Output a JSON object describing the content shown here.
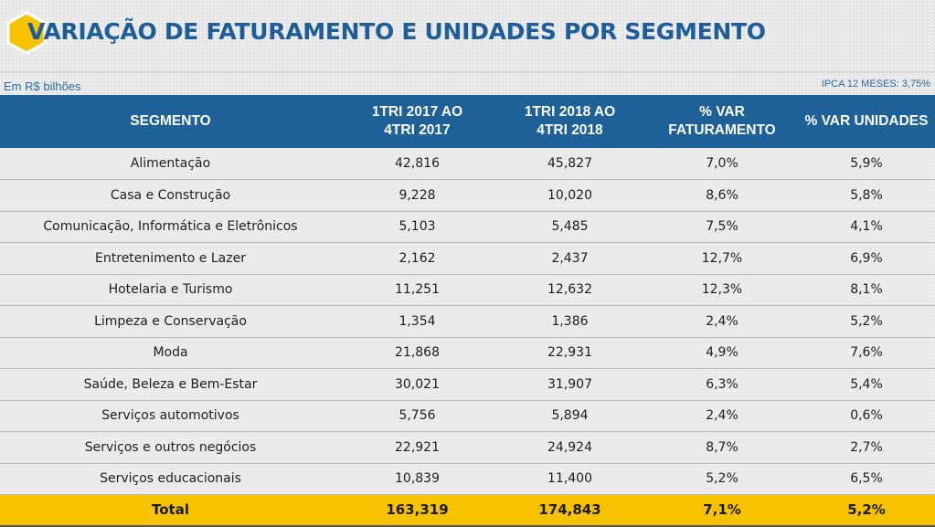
{
  "title": "VARIAÇÃO DE FATURAMENTO E UNIDADES POR SEGMENTO",
  "unit_note": "Em R$ bilhões",
  "ipca_note": "IPCA 12 MESES: 3,75%",
  "colors": {
    "title": "#1d5d9b",
    "header_bg": "#1d6198",
    "total_bg": "#f7c200",
    "hex_icon": "#f7c200"
  },
  "table": {
    "headers": [
      "SEGMENTO",
      "1TRI 2017 AO 4TRI 2017",
      "1TRI 2018 AO 4TRI 2018",
      "% VAR FATURAMENTO",
      "% VAR UNIDADES"
    ],
    "header_lines": [
      [
        "SEGMENTO"
      ],
      [
        "1TRI 2017 AO",
        "4TRI 2017"
      ],
      [
        "1TRI 2018 AO",
        "4TRI 2018"
      ],
      [
        "% VAR",
        "FATURAMENTO"
      ],
      [
        "% VAR UNIDADES"
      ]
    ],
    "rows": [
      [
        "Alimentação",
        "42,816",
        "45,827",
        "7,0%",
        "5,9%"
      ],
      [
        "Casa e Construção",
        "9,228",
        "10,020",
        "8,6%",
        "5,8%"
      ],
      [
        "Comunicação, Informática e Eletrônicos",
        "5,103",
        "5,485",
        "7,5%",
        "4,1%"
      ],
      [
        "Entretenimento e Lazer",
        "2,162",
        "2,437",
        "12,7%",
        "6,9%"
      ],
      [
        "Hotelaria e Turismo",
        "11,251",
        "12,632",
        "12,3%",
        "8,1%"
      ],
      [
        "Limpeza e Conservação",
        "1,354",
        "1,386",
        "2,4%",
        "5,2%"
      ],
      [
        "Moda",
        "21,868",
        "22,931",
        "4,9%",
        "7,6%"
      ],
      [
        "Saúde, Beleza e Bem-Estar",
        "30,021",
        "31,907",
        "6,3%",
        "5,4%"
      ],
      [
        "Serviços automotivos",
        "5,756",
        "5,894",
        "2,4%",
        "0,6%"
      ],
      [
        "Serviços e outros negócios",
        "22,921",
        "24,924",
        "8,7%",
        "2,7%"
      ],
      [
        "Serviços educacionais",
        "10,839",
        "11,400",
        "5,2%",
        "6,5%"
      ]
    ],
    "total": [
      "Total",
      "163,319",
      "174,843",
      "7,1%",
      "5,2%"
    ]
  }
}
